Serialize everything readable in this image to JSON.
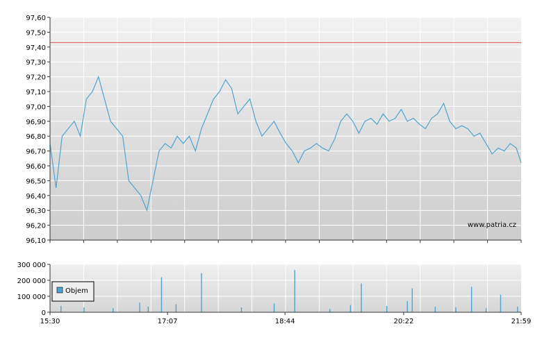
{
  "watermark": "www.patria.cz",
  "colors": {
    "price_line": "#4fa3cf",
    "reference_line": "#e05555",
    "volume_bar": "#4fa3cf",
    "grid": "#ffffff",
    "axis": "#333333"
  },
  "chart_data": [
    {
      "type": "line",
      "name": "price",
      "title": "",
      "ylim": [
        96.1,
        97.6
      ],
      "yticks": [
        96.1,
        96.2,
        96.3,
        96.4,
        96.5,
        96.6,
        96.7,
        96.8,
        96.9,
        97.0,
        97.1,
        97.2,
        97.3,
        97.4,
        97.5,
        97.6
      ],
      "ytick_labels": [
        "96,10",
        "96,20",
        "96,30",
        "96,40",
        "96,50",
        "96,60",
        "96,70",
        "96,80",
        "96,90",
        "97,00",
        "97,10",
        "97,20",
        "97,30",
        "97,40",
        "97,50",
        "97,60"
      ],
      "reference_value": 97.43,
      "xlim": [
        "15:30",
        "21:59"
      ],
      "grid": true,
      "x": [
        "15:30",
        "15:35",
        "15:40",
        "15:45",
        "15:50",
        "15:55",
        "16:00",
        "16:05",
        "16:10",
        "16:15",
        "16:20",
        "16:25",
        "16:30",
        "16:35",
        "16:40",
        "16:45",
        "16:50",
        "16:55",
        "17:00",
        "17:05",
        "17:10",
        "17:15",
        "17:20",
        "17:25",
        "17:30",
        "17:35",
        "17:40",
        "17:45",
        "17:50",
        "17:55",
        "18:00",
        "18:05",
        "18:10",
        "18:15",
        "18:20",
        "18:25",
        "18:30",
        "18:35",
        "18:40",
        "18:45",
        "18:50",
        "18:55",
        "19:00",
        "19:05",
        "19:10",
        "19:15",
        "19:20",
        "19:25",
        "19:30",
        "19:35",
        "19:40",
        "19:45",
        "19:50",
        "19:55",
        "20:00",
        "20:05",
        "20:10",
        "20:15",
        "20:20",
        "20:25",
        "20:30",
        "20:35",
        "20:40",
        "20:45",
        "20:50",
        "20:55",
        "21:00",
        "21:05",
        "21:10",
        "21:15",
        "21:20",
        "21:25",
        "21:30",
        "21:35",
        "21:40",
        "21:45",
        "21:50",
        "21:55",
        "21:59"
      ],
      "values": [
        96.75,
        96.45,
        96.8,
        96.85,
        96.9,
        96.8,
        97.05,
        97.1,
        97.2,
        97.05,
        96.9,
        96.85,
        96.8,
        96.5,
        96.45,
        96.4,
        96.3,
        96.5,
        96.7,
        96.75,
        96.72,
        96.8,
        96.75,
        96.8,
        96.7,
        96.85,
        96.95,
        97.05,
        97.1,
        97.18,
        97.12,
        96.95,
        97.0,
        97.05,
        96.9,
        96.8,
        96.85,
        96.9,
        96.82,
        96.75,
        96.7,
        96.62,
        96.7,
        96.72,
        96.75,
        96.72,
        96.7,
        96.78,
        96.9,
        96.95,
        96.9,
        96.82,
        96.9,
        96.92,
        96.88,
        96.95,
        96.9,
        96.92,
        96.98,
        96.9,
        96.92,
        96.88,
        96.85,
        96.92,
        96.95,
        97.02,
        96.9,
        96.85,
        96.87,
        96.85,
        96.8,
        96.82,
        96.75,
        96.68,
        96.72,
        96.7,
        96.75,
        96.72,
        96.62
      ]
    },
    {
      "type": "bar",
      "name": "volume",
      "legend": [
        "Objem"
      ],
      "ylim": [
        0,
        300000
      ],
      "yticks": [
        0,
        100000,
        200000,
        300000
      ],
      "ytick_labels": [
        "0",
        "100 000",
        "200 000",
        "300 000"
      ],
      "xticks": [
        "15:30",
        "17:07",
        "18:44",
        "20:22",
        "21:59"
      ],
      "xlim": [
        "15:30",
        "21:59"
      ],
      "grid": true,
      "x": [
        "15:39",
        "15:58",
        "16:22",
        "16:44",
        "16:51",
        "17:02",
        "17:14",
        "17:35",
        "18:08",
        "18:35",
        "18:52",
        "19:21",
        "19:38",
        "19:47",
        "20:08",
        "20:25",
        "20:29",
        "20:48",
        "21:05",
        "21:18",
        "21:30",
        "21:42",
        "21:56"
      ],
      "values": [
        40000,
        30000,
        25000,
        60000,
        35000,
        220000,
        50000,
        245000,
        30000,
        55000,
        265000,
        20000,
        45000,
        180000,
        40000,
        70000,
        150000,
        35000,
        30000,
        160000,
        25000,
        110000,
        35000
      ]
    }
  ]
}
